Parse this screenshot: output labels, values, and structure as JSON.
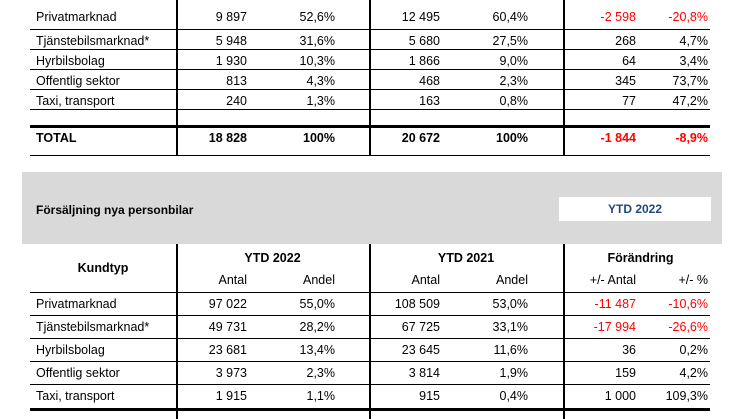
{
  "table1": {
    "rows": [
      {
        "type": "Privatmarknad",
        "antal22": "9 897",
        "andel22": "52,6%",
        "antal21": "12 495",
        "andel21": "60,4%",
        "diff": "-2 598",
        "pct": "-20,8%",
        "neg": true
      },
      {
        "type": "Tjänstebilsmarknad*",
        "antal22": "5 948",
        "andel22": "31,6%",
        "antal21": "5 680",
        "andel21": "27,5%",
        "diff": "268",
        "pct": "4,7%",
        "neg": false
      },
      {
        "type": "Hyrbilsbolag",
        "antal22": "1 930",
        "andel22": "10,3%",
        "antal21": "1 866",
        "andel21": "9,0%",
        "diff": "64",
        "pct": "3,4%",
        "neg": false
      },
      {
        "type": "Offentlig sektor",
        "antal22": "813",
        "andel22": "4,3%",
        "antal21": "468",
        "andel21": "2,3%",
        "diff": "345",
        "pct": "73,7%",
        "neg": false
      },
      {
        "type": "Taxi, transport",
        "antal22": "240",
        "andel22": "1,3%",
        "antal21": "163",
        "andel21": "0,8%",
        "diff": "77",
        "pct": "47,2%",
        "neg": false
      }
    ],
    "total": {
      "type": "TOTAL",
      "antal22": "18 828",
      "andel22": "100%",
      "antal21": "20 672",
      "andel21": "100%",
      "diff": "-1 844",
      "pct": "-8,9%"
    }
  },
  "section2": {
    "title": "Försäljning nya personbilar",
    "badge": "YTD 2022"
  },
  "table2": {
    "header": {
      "kundtyp": "Kundtyp",
      "ytd2022": "YTD 2022",
      "ytd2021": "YTD 2021",
      "forandring": "Förändring",
      "antal": "Antal",
      "andel": "Andel",
      "plusminus_antal": "+/- Antal",
      "plusminus_pct": "+/- %"
    },
    "rows": [
      {
        "type": "Privatmarknad",
        "antal22": "97 022",
        "andel22": "55,0%",
        "antal21": "108 509",
        "andel21": "53,0%",
        "diff": "-11 487",
        "pct": "-10,6%",
        "neg": true
      },
      {
        "type": "Tjänstebilsmarknad*",
        "antal22": "49 731",
        "andel22": "28,2%",
        "antal21": "67 725",
        "andel21": "33,1%",
        "diff": "-17 994",
        "pct": "-26,6%",
        "neg": true
      },
      {
        "type": "Hyrbilsbolag",
        "antal22": "23 681",
        "andel22": "13,4%",
        "antal21": "23 645",
        "andel21": "11,6%",
        "diff": "36",
        "pct": "0,2%",
        "neg": false
      },
      {
        "type": "Offentlig sektor",
        "antal22": "3 973",
        "andel22": "2,3%",
        "antal21": "3 814",
        "andel21": "1,9%",
        "diff": "159",
        "pct": "4,2%",
        "neg": false
      },
      {
        "type": "Taxi, transport",
        "antal22": "1 915",
        "andel22": "1,1%",
        "antal21": "915",
        "andel21": "0,4%",
        "diff": "1 000",
        "pct": "109,3%",
        "neg": false
      }
    ]
  }
}
